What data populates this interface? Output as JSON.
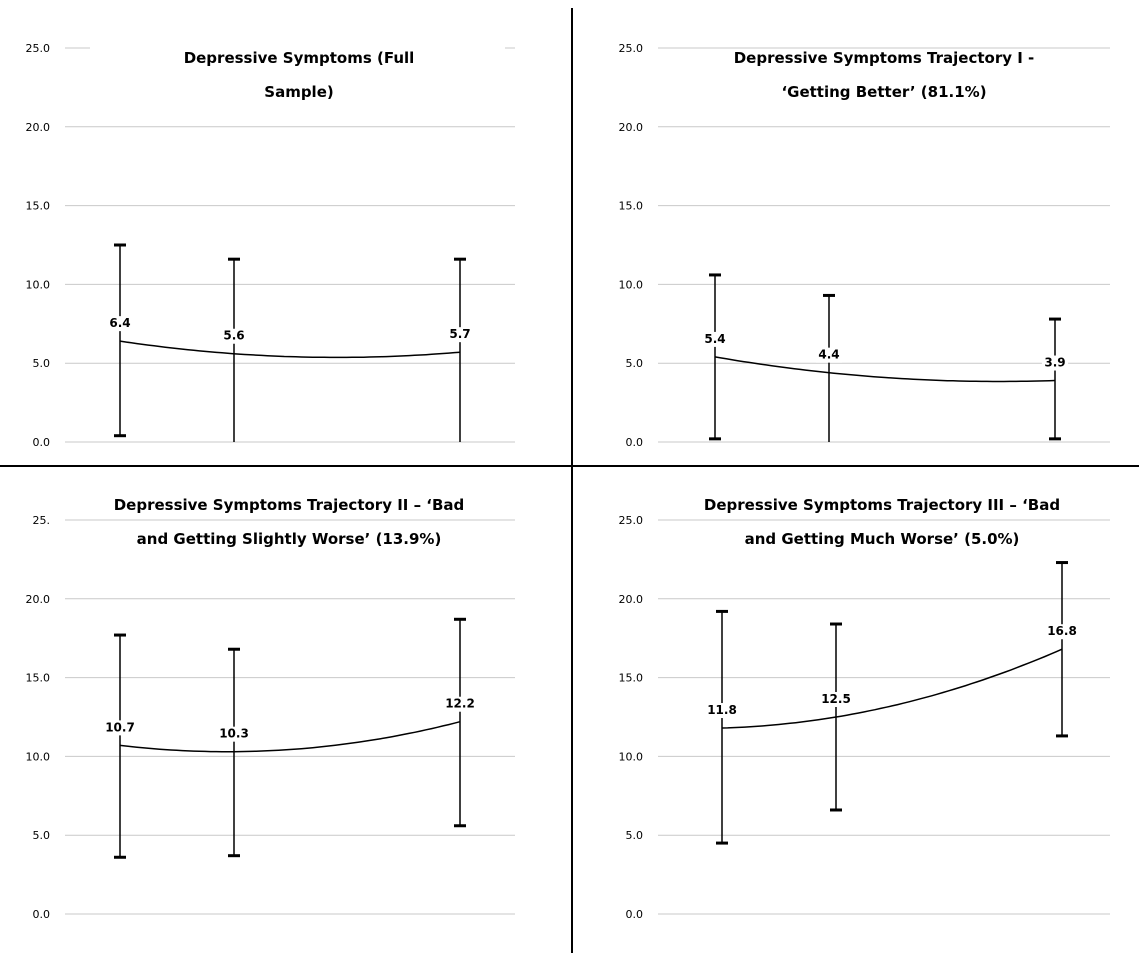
{
  "chart_data": [
    {
      "type": "line",
      "title": [
        "Depressive Symptoms  (Full",
        "Sample)"
      ],
      "ylim": [
        0,
        25
      ],
      "yticks": [
        "0.0",
        "5.0",
        "10.0",
        "15.0",
        "20.0",
        "25.0"
      ],
      "grid": true,
      "series": [
        {
          "x": [
            1,
            2,
            3
          ],
          "values": [
            6.4,
            5.6,
            5.7
          ],
          "labels": [
            "6.4",
            "5.6",
            "5.7"
          ],
          "error_high": [
            12.5,
            11.6,
            11.6
          ],
          "error_low": [
            0.4,
            0.0,
            0.0
          ]
        }
      ]
    },
    {
      "type": "line",
      "title": [
        "Depressive Symptoms Trajectory I -",
        "‘Getting Better’ (81.1%)"
      ],
      "ylim": [
        0,
        25
      ],
      "yticks": [
        "0.0",
        "5.0",
        "10.0",
        "15.0",
        "20.0",
        "25.0"
      ],
      "grid": true,
      "series": [
        {
          "x": [
            1,
            2,
            3
          ],
          "values": [
            5.4,
            4.4,
            3.9
          ],
          "labels": [
            "5.4",
            "4.4",
            "3.9"
          ],
          "error_high": [
            10.6,
            9.3,
            7.8
          ],
          "error_low": [
            0.2,
            0.0,
            0.2
          ]
        }
      ]
    },
    {
      "type": "line",
      "title": [
        "Depressive Symptoms Trajectory II – ‘Bad",
        "and Getting Slightly Worse’ (13.9%)"
      ],
      "ylim": [
        0,
        25
      ],
      "yticks": [
        "0.0",
        "5.0",
        "10.0",
        "15.0",
        "20.0",
        "25."
      ],
      "grid": true,
      "series": [
        {
          "x": [
            1,
            2,
            3
          ],
          "values": [
            10.7,
            10.3,
            12.2
          ],
          "labels": [
            "10.7",
            "10.3",
            "12.2"
          ],
          "error_high": [
            17.7,
            16.8,
            18.7
          ],
          "error_low": [
            3.6,
            3.7,
            5.6
          ]
        }
      ]
    },
    {
      "type": "line",
      "title": [
        "Depressive Symptoms Trajectory III – ‘Bad",
        "and Getting Much Worse’ (5.0%)"
      ],
      "ylim": [
        0,
        25
      ],
      "yticks": [
        "0.0",
        "5.0",
        "10.0",
        "15.0",
        "20.0",
        "25.0"
      ],
      "grid": true,
      "series": [
        {
          "x": [
            1,
            2,
            3
          ],
          "values": [
            11.8,
            12.5,
            16.8
          ],
          "labels": [
            "11.8",
            "12.5",
            "16.8"
          ],
          "error_high": [
            19.2,
            18.4,
            22.3
          ],
          "error_low": [
            4.5,
            6.6,
            11.3
          ]
        }
      ]
    }
  ]
}
